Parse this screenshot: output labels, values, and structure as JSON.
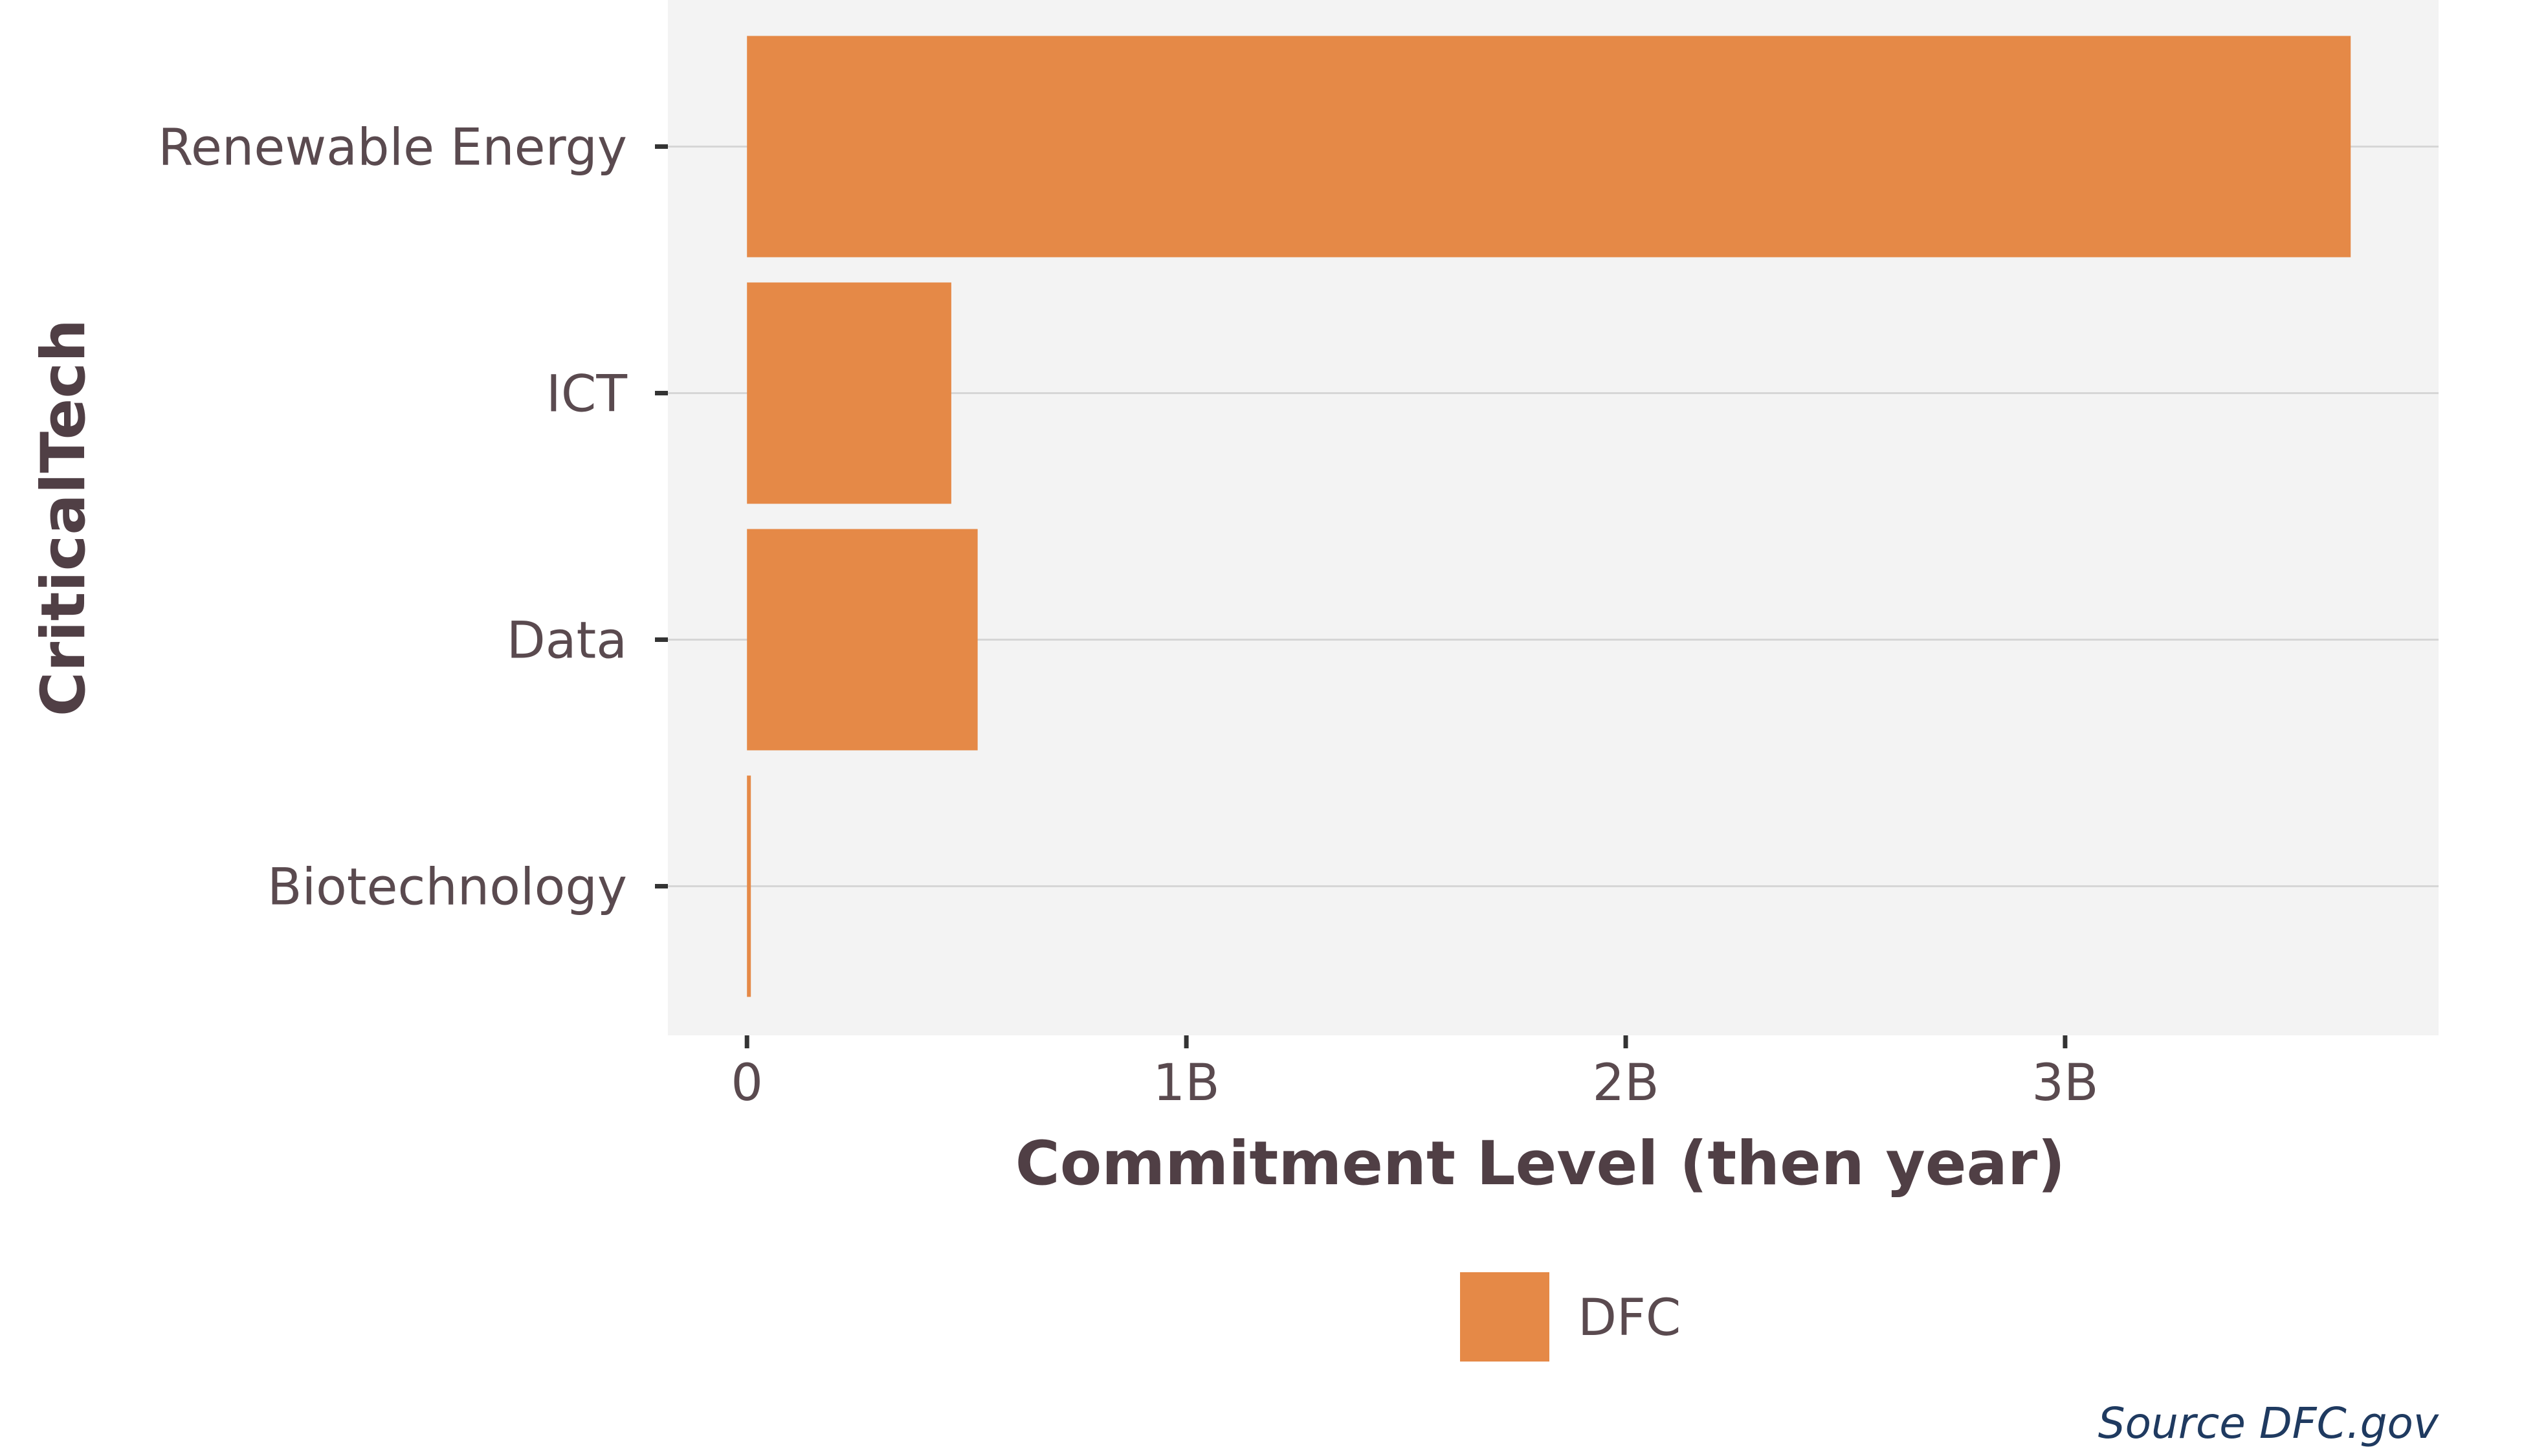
{
  "chart_data": {
    "type": "bar",
    "orientation": "horizontal",
    "categories": [
      "Renewable Energy",
      "ICT",
      "Data",
      "Biotechnology"
    ],
    "series": [
      {
        "name": "DFC",
        "values": [
          3650000000,
          465000000,
          525000000,
          8000000
        ]
      }
    ],
    "xlabel": "Commitment Level (then year)",
    "ylabel": "CriticalTech",
    "xlim": [
      -180000000,
      3850000000
    ],
    "xticks": [
      {
        "value": 0,
        "label": "0"
      },
      {
        "value": 1000000000,
        "label": "1B"
      },
      {
        "value": 2000000000,
        "label": "2B"
      },
      {
        "value": 3000000000,
        "label": "3B"
      }
    ],
    "grid": true,
    "legend_position": "bottom",
    "bar_color": "#e58947",
    "panel_color": "#f3f3f3",
    "gridline_color": "#d6d6d6"
  },
  "source": "Source DFC.gov"
}
